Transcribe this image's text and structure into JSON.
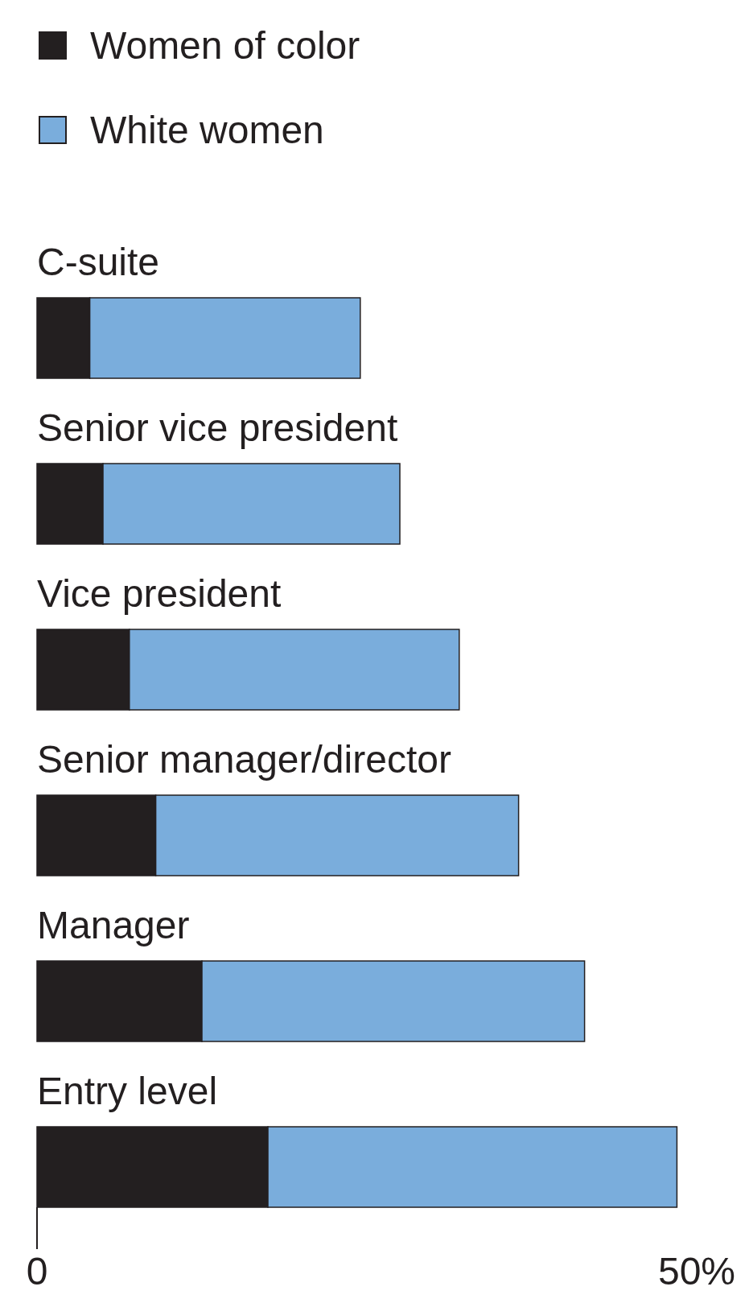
{
  "chart_data": {
    "type": "bar",
    "orientation": "horizontal",
    "stacked": true,
    "categories": [
      "C-suite",
      "Senior vice president",
      "Vice president",
      "Senior manager/director",
      "Manager",
      "Entry level"
    ],
    "series": [
      {
        "name": "Women of color",
        "color": "#231f20",
        "values": [
          4,
          5,
          7,
          9,
          12.5,
          17.5
        ]
      },
      {
        "name": "White women",
        "color": "#7aaddc",
        "values": [
          20.5,
          22.5,
          25,
          27.5,
          29,
          31
        ]
      }
    ],
    "xlim": [
      0,
      50
    ],
    "xticks": [
      0,
      {
        "value": 50,
        "label": "50%"
      }
    ],
    "legend": "top left",
    "grid": false
  }
}
